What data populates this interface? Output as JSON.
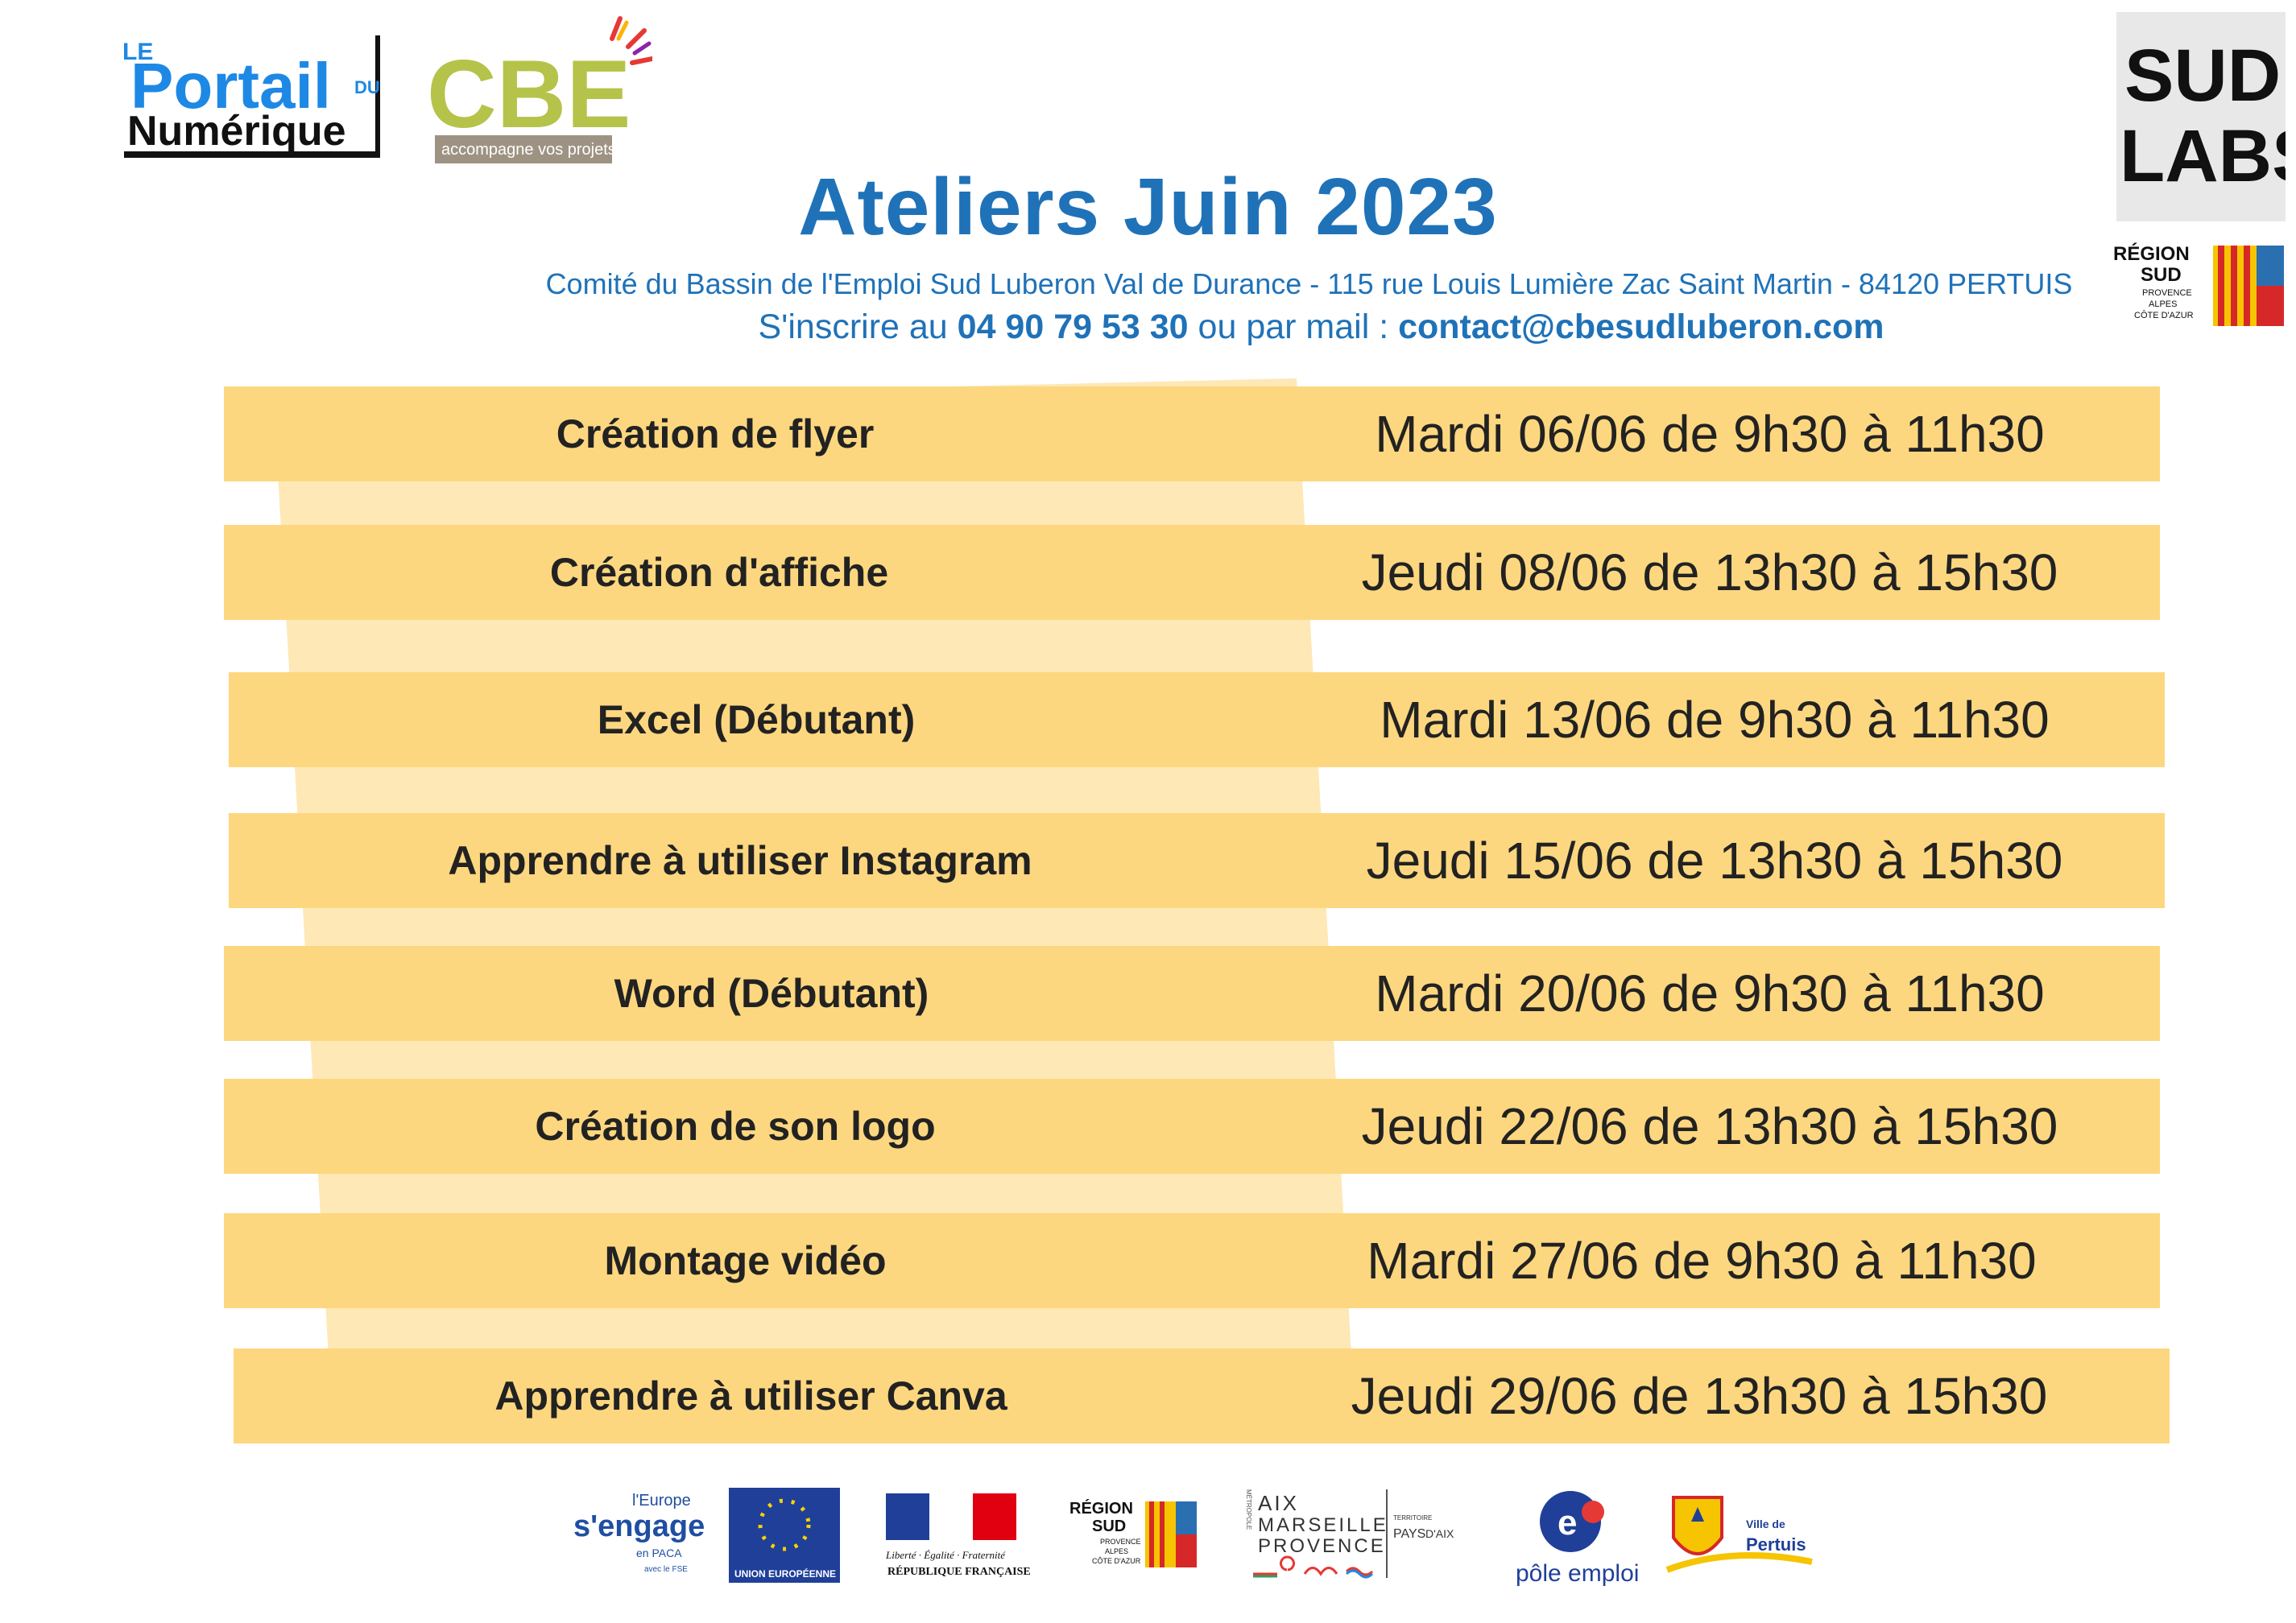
{
  "header": {
    "title": "Ateliers Juin 2023",
    "organization": "Comité du Bassin de l'Emploi Sud Luberon Val de Durance - 115 rue Louis Lumière Zac Saint Martin - 84120 PERTUIS",
    "signup_prefix": "S'inscrire au ",
    "phone": "04 90 79 53 30",
    "signup_middle": " ou par mail : ",
    "email": "contact@cbesudluberon.com"
  },
  "workshops": [
    {
      "topic": "Création de flyer",
      "date": "Mardi 06/06 de 9h30 à 11h30"
    },
    {
      "topic": "Création d'affiche",
      "date": "Jeudi 08/06 de 13h30 à 15h30"
    },
    {
      "topic": "Excel (Débutant)",
      "date": "Mardi 13/06 de 9h30 à 11h30"
    },
    {
      "topic": "Apprendre à utiliser Instagram",
      "date": "Jeudi 15/06 de 13h30 à 15h30"
    },
    {
      "topic": "Word (Débutant)",
      "date": "Mardi 20/06 de 9h30 à 11h30"
    },
    {
      "topic": "Création de son logo",
      "date": "Jeudi 22/06 de 13h30 à 15h30"
    },
    {
      "topic": "Montage vidéo",
      "date": "Mardi 27/06 de 9h30 à 11h30"
    },
    {
      "topic": "Apprendre à utiliser Canva",
      "date": "Jeudi 29/06 de 13h30 à 15h30"
    }
  ],
  "logos": {
    "portail_le": "LE",
    "portail_main": "Portail",
    "portail_du": "DU",
    "portail_sub": "Numérique",
    "cbe_main": "CBE",
    "cbe_tagline": "accompagne vos projets",
    "sudlabs_line1": "SUD",
    "sudlabs_line2": "LABS",
    "region_line1": "RÉGION",
    "region_line2": "SUD",
    "region_sub1": "PROVENCE",
    "region_sub2": "ALPES",
    "region_sub3": "CÔTE D'AZUR",
    "europe_line1": "l'Europe",
    "europe_line2": "s'engage",
    "europe_line3": "en PACA",
    "europe_line4": "avec le FSE",
    "eu_label": "UNION EUROPÉENNE",
    "rf_motto": "Liberté · Égalité · Fraternité",
    "rf_label": "RÉPUBLIQUE FRANÇAISE",
    "amp_line1": "AIX",
    "amp_line2": "MARSEILLE",
    "amp_line3": "PROVENCE",
    "amp_side": "MÉTROPOLE",
    "amp_territoire": "TERRITOIRE",
    "amp_pays": "PAYS",
    "amp_aix": "D'AIX",
    "pole_emploi": "pôle emploi",
    "pertuis_ville": "Ville de",
    "pertuis_name": "Pertuis"
  },
  "colors": {
    "title_blue": "#1f72b8",
    "row_yellow": "#fdd77f",
    "stripe_yellow": "#fde8b6"
  }
}
